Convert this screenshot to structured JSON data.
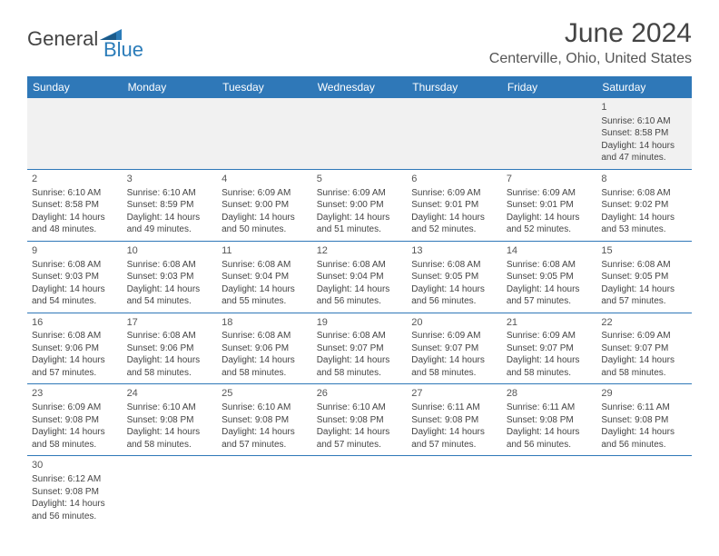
{
  "logo": {
    "part1": "General",
    "part2": "Blue",
    "shape_color": "#2b7cb9"
  },
  "title": "June 2024",
  "location": "Centerville, Ohio, United States",
  "colors": {
    "header_bg": "#2f78b8",
    "header_text": "#ffffff",
    "row_border": "#2f78b8",
    "blank_bg": "#f1f1f1",
    "text": "#444444"
  },
  "day_headers": [
    "Sunday",
    "Monday",
    "Tuesday",
    "Wednesday",
    "Thursday",
    "Friday",
    "Saturday"
  ],
  "weeks": [
    [
      null,
      null,
      null,
      null,
      null,
      null,
      {
        "n": "1",
        "sr": "Sunrise: 6:10 AM",
        "ss": "Sunset: 8:58 PM",
        "d1": "Daylight: 14 hours",
        "d2": "and 47 minutes."
      }
    ],
    [
      {
        "n": "2",
        "sr": "Sunrise: 6:10 AM",
        "ss": "Sunset: 8:58 PM",
        "d1": "Daylight: 14 hours",
        "d2": "and 48 minutes."
      },
      {
        "n": "3",
        "sr": "Sunrise: 6:10 AM",
        "ss": "Sunset: 8:59 PM",
        "d1": "Daylight: 14 hours",
        "d2": "and 49 minutes."
      },
      {
        "n": "4",
        "sr": "Sunrise: 6:09 AM",
        "ss": "Sunset: 9:00 PM",
        "d1": "Daylight: 14 hours",
        "d2": "and 50 minutes."
      },
      {
        "n": "5",
        "sr": "Sunrise: 6:09 AM",
        "ss": "Sunset: 9:00 PM",
        "d1": "Daylight: 14 hours",
        "d2": "and 51 minutes."
      },
      {
        "n": "6",
        "sr": "Sunrise: 6:09 AM",
        "ss": "Sunset: 9:01 PM",
        "d1": "Daylight: 14 hours",
        "d2": "and 52 minutes."
      },
      {
        "n": "7",
        "sr": "Sunrise: 6:09 AM",
        "ss": "Sunset: 9:01 PM",
        "d1": "Daylight: 14 hours",
        "d2": "and 52 minutes."
      },
      {
        "n": "8",
        "sr": "Sunrise: 6:08 AM",
        "ss": "Sunset: 9:02 PM",
        "d1": "Daylight: 14 hours",
        "d2": "and 53 minutes."
      }
    ],
    [
      {
        "n": "9",
        "sr": "Sunrise: 6:08 AM",
        "ss": "Sunset: 9:03 PM",
        "d1": "Daylight: 14 hours",
        "d2": "and 54 minutes."
      },
      {
        "n": "10",
        "sr": "Sunrise: 6:08 AM",
        "ss": "Sunset: 9:03 PM",
        "d1": "Daylight: 14 hours",
        "d2": "and 54 minutes."
      },
      {
        "n": "11",
        "sr": "Sunrise: 6:08 AM",
        "ss": "Sunset: 9:04 PM",
        "d1": "Daylight: 14 hours",
        "d2": "and 55 minutes."
      },
      {
        "n": "12",
        "sr": "Sunrise: 6:08 AM",
        "ss": "Sunset: 9:04 PM",
        "d1": "Daylight: 14 hours",
        "d2": "and 56 minutes."
      },
      {
        "n": "13",
        "sr": "Sunrise: 6:08 AM",
        "ss": "Sunset: 9:05 PM",
        "d1": "Daylight: 14 hours",
        "d2": "and 56 minutes."
      },
      {
        "n": "14",
        "sr": "Sunrise: 6:08 AM",
        "ss": "Sunset: 9:05 PM",
        "d1": "Daylight: 14 hours",
        "d2": "and 57 minutes."
      },
      {
        "n": "15",
        "sr": "Sunrise: 6:08 AM",
        "ss": "Sunset: 9:05 PM",
        "d1": "Daylight: 14 hours",
        "d2": "and 57 minutes."
      }
    ],
    [
      {
        "n": "16",
        "sr": "Sunrise: 6:08 AM",
        "ss": "Sunset: 9:06 PM",
        "d1": "Daylight: 14 hours",
        "d2": "and 57 minutes."
      },
      {
        "n": "17",
        "sr": "Sunrise: 6:08 AM",
        "ss": "Sunset: 9:06 PM",
        "d1": "Daylight: 14 hours",
        "d2": "and 58 minutes."
      },
      {
        "n": "18",
        "sr": "Sunrise: 6:08 AM",
        "ss": "Sunset: 9:06 PM",
        "d1": "Daylight: 14 hours",
        "d2": "and 58 minutes."
      },
      {
        "n": "19",
        "sr": "Sunrise: 6:08 AM",
        "ss": "Sunset: 9:07 PM",
        "d1": "Daylight: 14 hours",
        "d2": "and 58 minutes."
      },
      {
        "n": "20",
        "sr": "Sunrise: 6:09 AM",
        "ss": "Sunset: 9:07 PM",
        "d1": "Daylight: 14 hours",
        "d2": "and 58 minutes."
      },
      {
        "n": "21",
        "sr": "Sunrise: 6:09 AM",
        "ss": "Sunset: 9:07 PM",
        "d1": "Daylight: 14 hours",
        "d2": "and 58 minutes."
      },
      {
        "n": "22",
        "sr": "Sunrise: 6:09 AM",
        "ss": "Sunset: 9:07 PM",
        "d1": "Daylight: 14 hours",
        "d2": "and 58 minutes."
      }
    ],
    [
      {
        "n": "23",
        "sr": "Sunrise: 6:09 AM",
        "ss": "Sunset: 9:08 PM",
        "d1": "Daylight: 14 hours",
        "d2": "and 58 minutes."
      },
      {
        "n": "24",
        "sr": "Sunrise: 6:10 AM",
        "ss": "Sunset: 9:08 PM",
        "d1": "Daylight: 14 hours",
        "d2": "and 58 minutes."
      },
      {
        "n": "25",
        "sr": "Sunrise: 6:10 AM",
        "ss": "Sunset: 9:08 PM",
        "d1": "Daylight: 14 hours",
        "d2": "and 57 minutes."
      },
      {
        "n": "26",
        "sr": "Sunrise: 6:10 AM",
        "ss": "Sunset: 9:08 PM",
        "d1": "Daylight: 14 hours",
        "d2": "and 57 minutes."
      },
      {
        "n": "27",
        "sr": "Sunrise: 6:11 AM",
        "ss": "Sunset: 9:08 PM",
        "d1": "Daylight: 14 hours",
        "d2": "and 57 minutes."
      },
      {
        "n": "28",
        "sr": "Sunrise: 6:11 AM",
        "ss": "Sunset: 9:08 PM",
        "d1": "Daylight: 14 hours",
        "d2": "and 56 minutes."
      },
      {
        "n": "29",
        "sr": "Sunrise: 6:11 AM",
        "ss": "Sunset: 9:08 PM",
        "d1": "Daylight: 14 hours",
        "d2": "and 56 minutes."
      }
    ],
    [
      {
        "n": "30",
        "sr": "Sunrise: 6:12 AM",
        "ss": "Sunset: 9:08 PM",
        "d1": "Daylight: 14 hours",
        "d2": "and 56 minutes."
      },
      null,
      null,
      null,
      null,
      null,
      null
    ]
  ]
}
